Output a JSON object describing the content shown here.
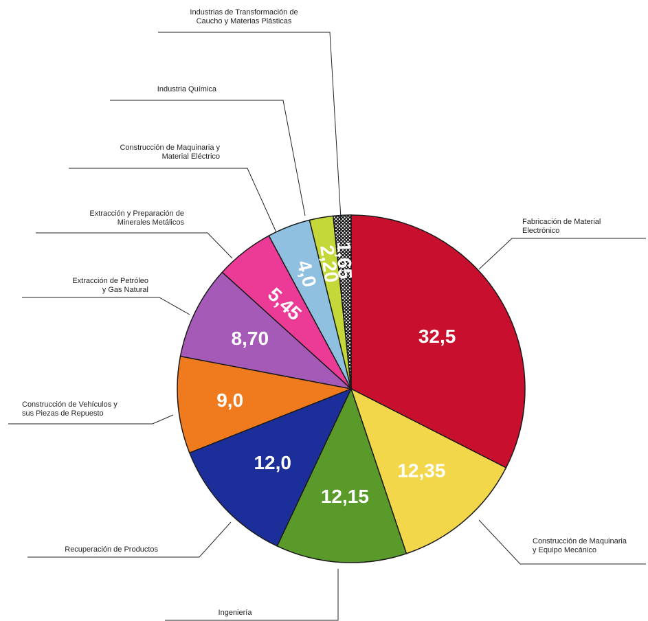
{
  "chart_data": {
    "type": "pie",
    "title": "",
    "slices": [
      {
        "label_lines": [
          "Fabricación de Material",
          "Electrónico"
        ],
        "value": 32.5,
        "value_label": "32,5",
        "color": "#c8102e"
      },
      {
        "label_lines": [
          "Construcción de Maquinaria",
          "y Equipo Mecánico"
        ],
        "value": 12.35,
        "value_label": "12,35",
        "color": "#f2d74a"
      },
      {
        "label_lines": [
          "Ingeniería"
        ],
        "value": 12.15,
        "value_label": "12,15",
        "color": "#5a9a2a"
      },
      {
        "label_lines": [
          "Recuperación de Productos"
        ],
        "value": 12.0,
        "value_label": "12,0",
        "color": "#1c2e9a"
      },
      {
        "label_lines": [
          "Construcción de Vehículos y",
          "sus Piezas de Repuesto"
        ],
        "value": 9.0,
        "value_label": "9,0",
        "color": "#f07a1e"
      },
      {
        "label_lines": [
          "Extracción de Petróleo",
          "y Gas Natural"
        ],
        "value": 8.7,
        "value_label": "8,70",
        "color": "#a55ab8"
      },
      {
        "label_lines": [
          "Extracción y Preparación de",
          "Minerales Metálicos"
        ],
        "value": 5.45,
        "value_label": "5,45",
        "color": "#ec3b96"
      },
      {
        "label_lines": [
          "Construcción de Maquinaria y",
          "Material Eléctrico"
        ],
        "value": 4.0,
        "value_label": "4,0",
        "color": "#8fc0e0"
      },
      {
        "label_lines": [
          "Industria Química"
        ],
        "value": 2.2,
        "value_label": "2,20",
        "color": "#c4d83a"
      },
      {
        "label_lines": [
          "Industrias de Transformación de",
          "Caucho y Materias Plásticas"
        ],
        "value": 1.65,
        "value_label": "1,65",
        "color": "#2a2a2a",
        "pattern": "dotted"
      }
    ]
  }
}
